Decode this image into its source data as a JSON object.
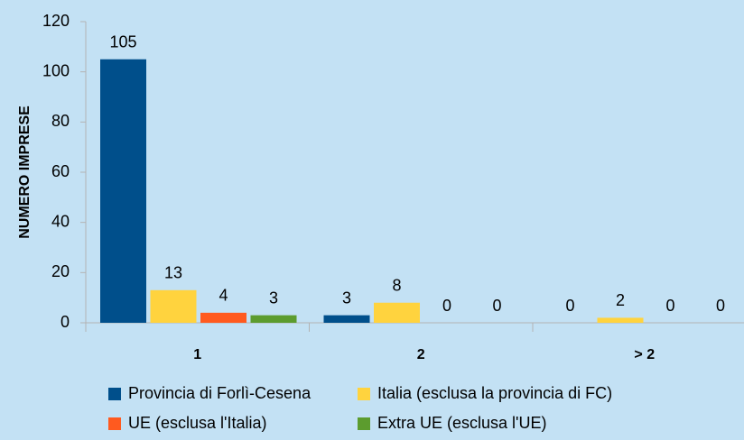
{
  "chart_data": {
    "type": "bar",
    "y_label": "NUMERO IMPRESE",
    "categories": [
      "1",
      "2",
      "> 2"
    ],
    "series": [
      {
        "name": "Provincia di Forlì-Cesena",
        "color": "#004f8b",
        "values": [
          105,
          3,
          0
        ]
      },
      {
        "name": "Italia (esclusa la provincia di FC)",
        "color": "#ffd33e",
        "values": [
          13,
          8,
          2
        ]
      },
      {
        "name": "UE (esclusa l'Italia)",
        "color": "#ff5a1f",
        "values": [
          4,
          0,
          0
        ]
      },
      {
        "name": "Extra UE (esclusa l'UE)",
        "color": "#5c9c2e",
        "values": [
          3,
          0,
          0
        ]
      }
    ],
    "ylim": [
      0,
      120
    ],
    "yticks": [
      0,
      20,
      40,
      60,
      80,
      100,
      120
    ]
  }
}
